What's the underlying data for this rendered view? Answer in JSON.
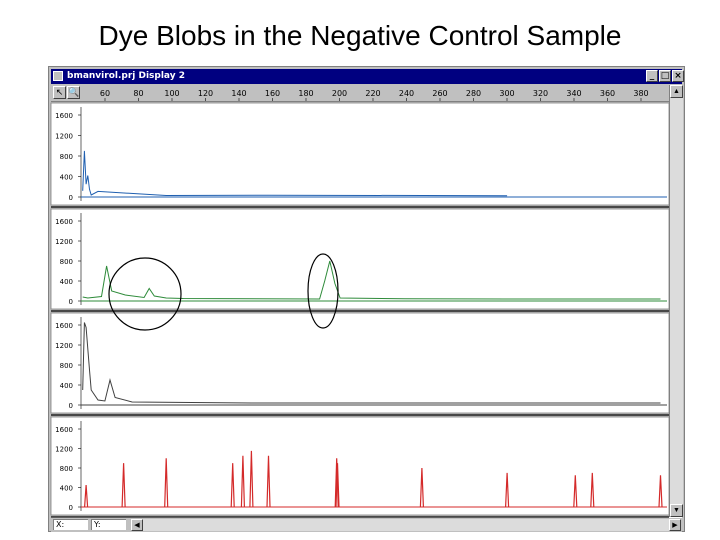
{
  "slide": {
    "title": "Dye Blobs in the Negative Control Sample"
  },
  "window": {
    "title": "bmanvirol.prj Display 2",
    "buttons": {
      "minimize": "_",
      "maximize": "□",
      "close": "×"
    }
  },
  "toolbar": {
    "cursor_tool": "↖",
    "zoom_tool": "🔍"
  },
  "ruler": {
    "labels": [
      "60",
      "80",
      "100",
      "120",
      "140",
      "160",
      "180",
      "200",
      "220",
      "240",
      "260",
      "280",
      "300",
      "320",
      "340",
      "360",
      "380"
    ]
  },
  "statusbar": {
    "field_x": "X:",
    "field_y": "Y:"
  },
  "chart_data": [
    {
      "type": "line",
      "title": "",
      "y_ticks": [
        "1600",
        "1200",
        "800",
        "400",
        "0"
      ],
      "ylim": [
        0,
        1600
      ],
      "xlim": [
        50,
        395
      ],
      "color": "#1f5fb0",
      "series": [
        {
          "x": [
            51,
            52,
            53,
            54,
            55,
            56,
            60,
            100,
            160,
            300
          ],
          "y": [
            120,
            900,
            250,
            420,
            150,
            40,
            110,
            30,
            35,
            25
          ]
        }
      ]
    },
    {
      "type": "line",
      "title": "",
      "y_ticks": [
        "1600",
        "1200",
        "800",
        "400",
        "0"
      ],
      "ylim": [
        0,
        1600
      ],
      "xlim": [
        50,
        395
      ],
      "color": "#2e8b3a",
      "series": [
        {
          "x": [
            51,
            54,
            62,
            65,
            68,
            76,
            87,
            90,
            93,
            100,
            110,
            190,
            193,
            196,
            199,
            202,
            240,
            300,
            390
          ],
          "y": [
            80,
            60,
            90,
            700,
            200,
            120,
            70,
            250,
            100,
            60,
            50,
            40,
            400,
            800,
            350,
            60,
            45,
            40,
            40
          ]
        }
      ]
    },
    {
      "type": "line",
      "title": "",
      "y_ticks": [
        "1600",
        "1200",
        "800",
        "400",
        "0"
      ],
      "ylim": [
        0,
        1600
      ],
      "xlim": [
        50,
        395
      ],
      "color": "#404040",
      "series": [
        {
          "x": [
            51,
            52,
            53,
            55,
            56,
            60,
            64,
            67,
            70,
            80,
            150,
            250,
            390
          ],
          "y": [
            300,
            1650,
            1550,
            700,
            300,
            100,
            80,
            500,
            150,
            60,
            40,
            40,
            40
          ]
        }
      ]
    },
    {
      "type": "line",
      "title": "",
      "y_ticks": [
        "1600",
        "1200",
        "800",
        "400",
        "0"
      ],
      "ylim": [
        0,
        1600
      ],
      "xlim": [
        50,
        395
      ],
      "color": "#d42a2a",
      "peaks": [
        {
          "x": 53,
          "y": 450
        },
        {
          "x": 75,
          "y": 900
        },
        {
          "x": 100,
          "y": 1000
        },
        {
          "x": 139,
          "y": 900
        },
        {
          "x": 145,
          "y": 1050
        },
        {
          "x": 150,
          "y": 1150
        },
        {
          "x": 160,
          "y": 1050
        },
        {
          "x": 200,
          "y": 1000
        },
        {
          "x": 200.5,
          "y": 900
        },
        {
          "x": 250,
          "y": 800
        },
        {
          "x": 300,
          "y": 700
        },
        {
          "x": 340,
          "y": 650
        },
        {
          "x": 350,
          "y": 700
        },
        {
          "x": 390,
          "y": 650
        }
      ]
    }
  ]
}
